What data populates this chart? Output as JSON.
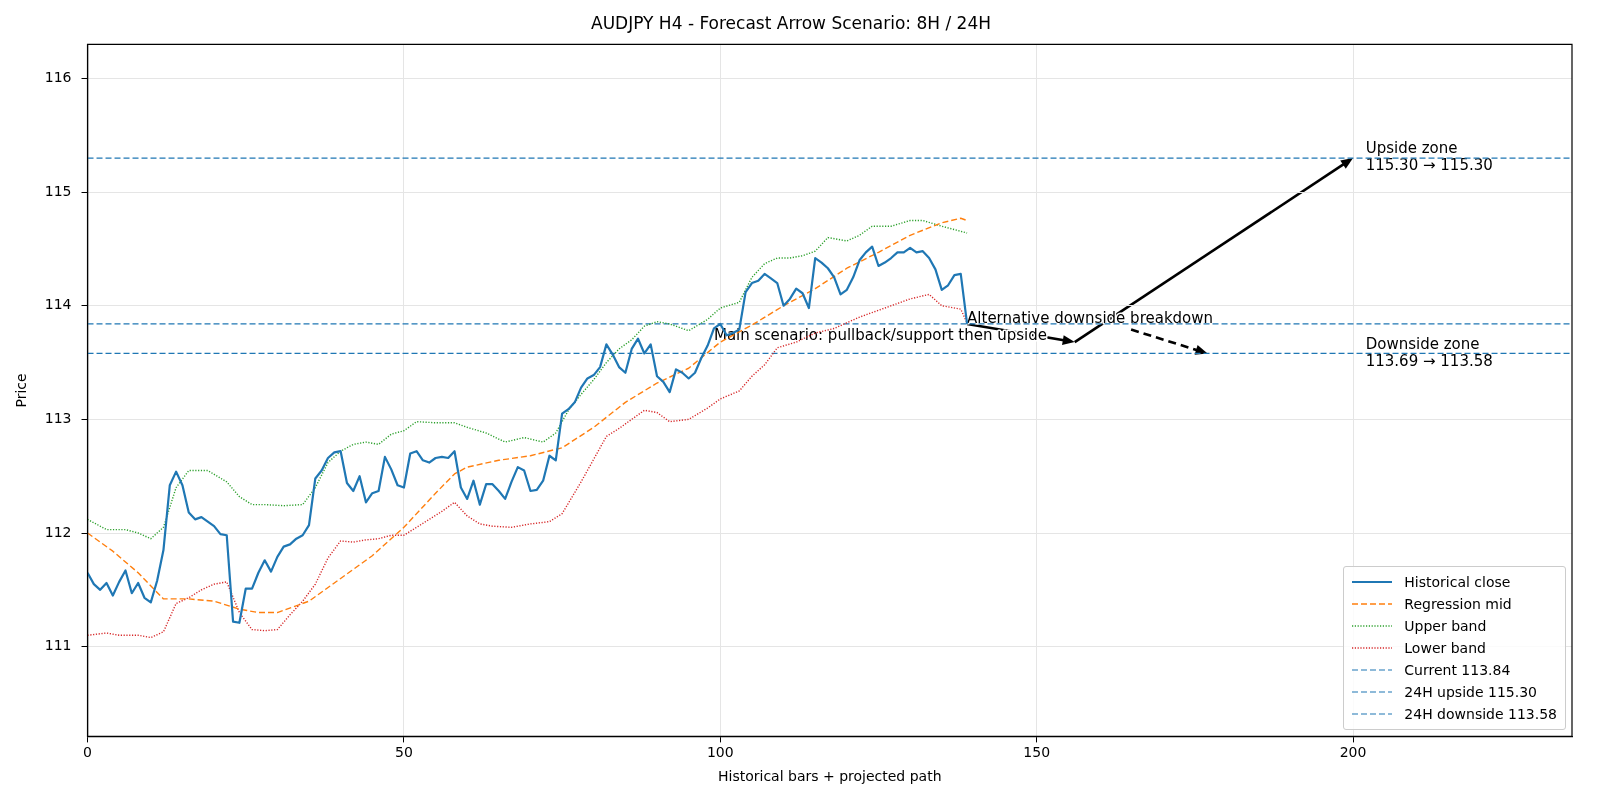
{
  "chart_data": {
    "type": "line",
    "title": "AUDJPY H4 - Forecast Arrow Scenario: 8H / 24H",
    "xlabel": "Historical bars + projected path",
    "ylabel": "Price",
    "x": [
      0,
      1,
      2,
      3,
      4,
      5,
      6,
      7,
      8,
      9,
      10,
      11,
      12,
      13,
      14,
      15,
      16,
      17,
      18,
      19,
      20,
      21,
      22,
      23,
      24,
      25,
      26,
      27,
      28,
      29,
      30,
      31,
      32,
      33,
      34,
      35,
      36,
      37,
      38,
      39,
      40,
      41,
      42,
      43,
      44,
      45,
      46,
      47,
      48,
      49,
      50,
      51,
      52,
      53,
      54,
      55,
      56,
      57,
      58,
      59,
      60,
      61,
      62,
      63,
      64,
      65,
      66,
      67,
      68,
      69,
      70,
      71,
      72,
      73,
      74,
      75,
      76,
      77,
      78,
      79,
      80,
      81,
      82,
      83,
      84,
      85,
      86,
      87,
      88,
      89,
      90,
      91,
      92,
      93,
      94,
      95,
      96,
      97,
      98,
      99,
      100,
      101,
      102,
      103,
      104,
      105,
      106,
      107,
      108,
      109,
      110,
      111,
      112,
      113,
      114,
      115,
      116,
      117,
      118,
      119,
      120,
      121,
      122,
      123,
      124,
      125,
      126,
      127,
      128,
      129,
      130,
      131,
      132,
      133,
      134,
      135,
      136,
      137,
      138,
      139
    ],
    "series": [
      {
        "name": "Historical close",
        "color": "#1f77b4",
        "line_style": "solid",
        "values": [
          111.65,
          111.55,
          111.5,
          111.56,
          111.45,
          111.57,
          111.67,
          111.47,
          111.56,
          111.43,
          111.39,
          111.58,
          111.85,
          112.42,
          112.54,
          112.42,
          112.18,
          112.12,
          112.14,
          112.1,
          112.06,
          111.99,
          111.98,
          111.22,
          111.21,
          111.51,
          111.51,
          111.65,
          111.76,
          111.66,
          111.79,
          111.88,
          111.9,
          111.95,
          111.98,
          112.07,
          112.48,
          112.55,
          112.66,
          112.71,
          112.72,
          112.44,
          112.37,
          112.5,
          112.27,
          112.35,
          112.37,
          112.67,
          112.56,
          112.42,
          112.4,
          112.7,
          112.72,
          112.64,
          112.62,
          112.66,
          112.67,
          112.66,
          112.72,
          112.4,
          112.3,
          112.46,
          112.25,
          112.43,
          112.43,
          112.37,
          112.3,
          112.45,
          112.58,
          112.55,
          112.37,
          112.38,
          112.46,
          112.68,
          112.64,
          113.05,
          113.09,
          113.15,
          113.28,
          113.36,
          113.39,
          113.46,
          113.66,
          113.57,
          113.46,
          113.41,
          113.62,
          113.71,
          113.58,
          113.66,
          113.38,
          113.33,
          113.24,
          113.44,
          113.41,
          113.36,
          113.41,
          113.54,
          113.65,
          113.8,
          113.84,
          113.74,
          113.76,
          113.79,
          114.12,
          114.2,
          114.22,
          114.28,
          114.24,
          114.2,
          114.0,
          114.06,
          114.15,
          114.11,
          113.98,
          114.42,
          114.38,
          114.33,
          114.25,
          114.1,
          114.14,
          114.25,
          114.4,
          114.47,
          114.52,
          114.35,
          114.38,
          114.42,
          114.47,
          114.47,
          114.51,
          114.47,
          114.48,
          114.42,
          114.32,
          114.14,
          114.18,
          114.27,
          114.28,
          113.84
        ]
      },
      {
        "name": "Regression mid",
        "color": "#ff7f0e",
        "line_style": "dashed",
        "x": [
          0,
          4,
          8,
          12,
          16,
          20,
          24,
          27,
          30,
          35,
          40,
          45,
          50,
          55,
          58,
          60,
          65,
          70,
          75,
          80,
          85,
          90,
          95,
          100,
          105,
          110,
          115,
          120,
          125,
          130,
          135,
          138,
          139
        ],
        "values": [
          112.0,
          111.84,
          111.65,
          111.42,
          111.42,
          111.4,
          111.33,
          111.3,
          111.3,
          111.4,
          111.6,
          111.8,
          112.05,
          112.35,
          112.52,
          112.58,
          112.64,
          112.68,
          112.75,
          112.93,
          113.15,
          113.32,
          113.45,
          113.68,
          113.83,
          114.0,
          114.15,
          114.33,
          114.47,
          114.62,
          114.73,
          114.77,
          114.75
        ]
      },
      {
        "name": "Upper band",
        "color": "#2ca02c",
        "line_style": "dotted",
        "x": [
          0,
          3,
          6,
          8,
          10,
          12,
          14,
          16,
          19,
          22,
          24,
          26,
          28,
          31,
          34,
          36,
          38,
          40,
          42,
          44,
          46,
          48,
          50,
          52,
          55,
          58,
          60,
          63,
          66,
          69,
          72,
          74,
          76,
          78,
          80,
          82,
          84,
          86,
          88,
          90,
          92,
          95,
          98,
          100,
          103,
          105,
          107,
          109,
          111,
          113,
          115,
          117,
          120,
          122,
          124,
          127,
          130,
          132,
          135,
          137,
          139
        ],
        "values": [
          112.12,
          112.03,
          112.03,
          112.0,
          111.95,
          112.05,
          112.4,
          112.55,
          112.55,
          112.45,
          112.32,
          112.25,
          112.25,
          112.24,
          112.25,
          112.4,
          112.62,
          112.72,
          112.78,
          112.8,
          112.78,
          112.87,
          112.9,
          112.98,
          112.97,
          112.97,
          112.93,
          112.88,
          112.8,
          112.84,
          112.8,
          112.88,
          113.08,
          113.22,
          113.35,
          113.5,
          113.62,
          113.7,
          113.82,
          113.86,
          113.84,
          113.78,
          113.88,
          113.98,
          114.03,
          114.25,
          114.37,
          114.42,
          114.42,
          114.44,
          114.48,
          114.6,
          114.57,
          114.62,
          114.7,
          114.7,
          114.75,
          114.75,
          114.7,
          114.67,
          114.64
        ]
      },
      {
        "name": "Lower band",
        "color": "#d62728",
        "line_style": "dotted",
        "x": [
          0,
          3,
          5,
          8,
          10,
          12,
          14,
          16,
          18,
          20,
          22,
          24,
          26,
          28,
          30,
          32,
          34,
          36,
          38,
          40,
          42,
          44,
          46,
          48,
          50,
          52,
          54,
          56,
          58,
          60,
          62,
          64,
          67,
          70,
          73,
          75,
          78,
          80,
          82,
          84,
          86,
          88,
          90,
          92,
          95,
          98,
          100,
          103,
          105,
          107,
          109,
          112,
          115,
          118,
          120,
          122,
          125,
          128,
          130,
          133,
          135,
          138,
          139
        ],
        "values": [
          111.1,
          111.12,
          111.1,
          111.1,
          111.08,
          111.13,
          111.38,
          111.43,
          111.5,
          111.55,
          111.57,
          111.3,
          111.15,
          111.14,
          111.15,
          111.28,
          111.4,
          111.55,
          111.78,
          111.93,
          111.92,
          111.94,
          111.95,
          111.98,
          111.98,
          112.05,
          112.12,
          112.19,
          112.27,
          112.15,
          112.08,
          112.06,
          112.05,
          112.08,
          112.1,
          112.17,
          112.45,
          112.65,
          112.85,
          112.92,
          113.0,
          113.08,
          113.06,
          112.98,
          113.0,
          113.1,
          113.18,
          113.25,
          113.38,
          113.48,
          113.63,
          113.68,
          113.76,
          113.8,
          113.85,
          113.9,
          113.96,
          114.02,
          114.06,
          114.1,
          114.0,
          113.97,
          113.85
        ]
      }
    ],
    "ref_lines": [
      {
        "axis": "y",
        "value": 113.84,
        "label": "Current 113.84",
        "color": "#1f77b4",
        "line_style": "dashed"
      },
      {
        "axis": "y",
        "value": 115.3,
        "label": "24H upside 115.30",
        "color": "#1f77b4",
        "line_style": "dashed"
      },
      {
        "axis": "y",
        "value": 113.58,
        "label": "24H downside 113.58",
        "color": "#1f77b4",
        "line_style": "dashed"
      }
    ],
    "annotations": [
      {
        "text": "Main scenario: pullback/support then upside",
        "x": 99,
        "y": 113.73
      },
      {
        "text": "Alternative downside breakdown",
        "x": 139,
        "y": 113.88
      },
      {
        "text": "Upside zone\n115.30 → 115.30",
        "x": 202,
        "y": 115.3
      },
      {
        "text": "Downside zone\n113.69 → 113.58",
        "x": 202,
        "y": 113.58
      }
    ],
    "xlim": [
      0,
      234.6
    ],
    "xticks": [
      0,
      50,
      100,
      150,
      200
    ],
    "ylim": [
      110.21,
      116.3
    ],
    "yticks": [
      111,
      112,
      113,
      114,
      115,
      116
    ],
    "grid": true,
    "legend": "bottom right"
  }
}
